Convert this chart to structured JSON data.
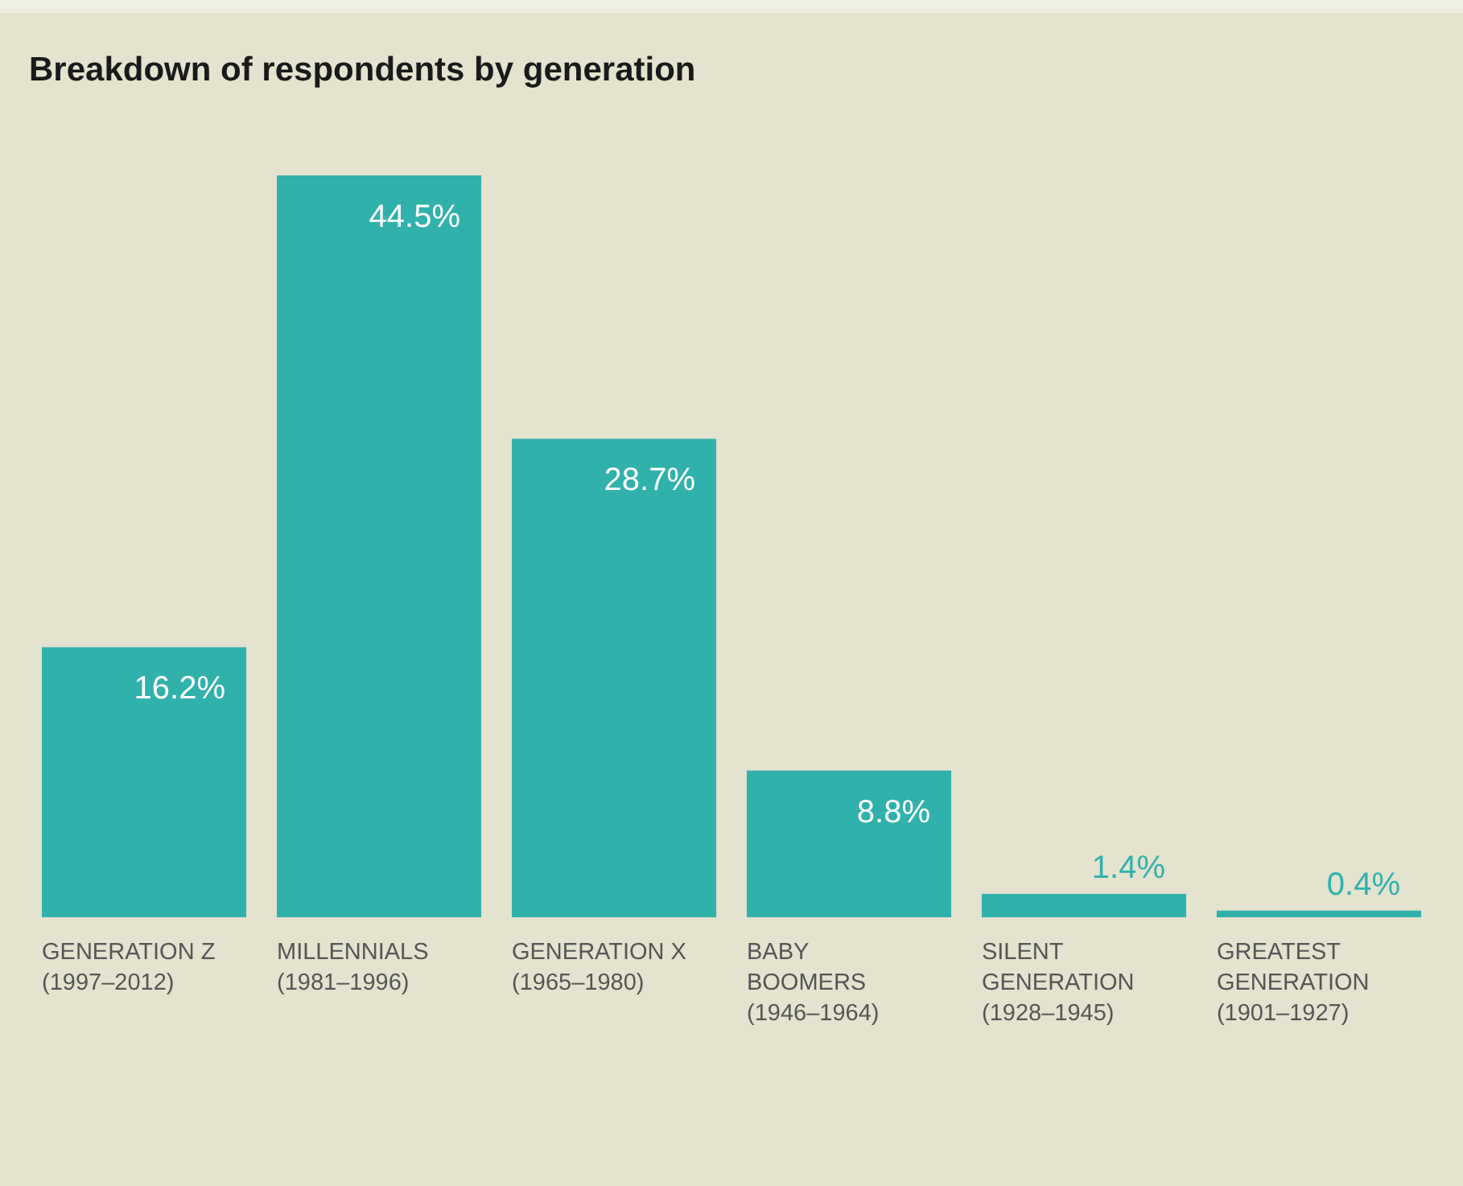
{
  "chart_data": {
    "type": "bar",
    "title": "Breakdown of respondents by generation",
    "categories": [
      "GENERATION Z\n(1997–2012)",
      "MILLENNIALS\n(1981–1996)",
      "GENERATION X\n(1965–1980)",
      "BABY\nBOOMERS\n(1946–1964)",
      "SILENT\nGENERATION\n(1928–1945)",
      "GREATEST\nGENERATION\n(1901–1927)"
    ],
    "values": [
      16.2,
      44.5,
      28.7,
      8.8,
      1.4,
      0.4
    ],
    "value_labels": [
      "16.2%",
      "44.5%",
      "28.7%",
      "8.8%",
      "1.4%",
      "0.4%"
    ],
    "color": "#31b1ac"
  }
}
